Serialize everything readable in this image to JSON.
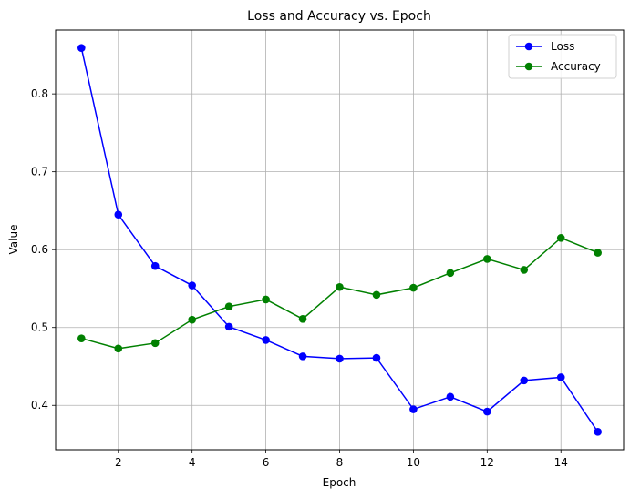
{
  "chart_data": {
    "type": "line",
    "title": "Loss and Accuracy vs. Epoch",
    "xlabel": "Epoch",
    "ylabel": "Value",
    "x": [
      1,
      2,
      3,
      4,
      5,
      6,
      7,
      8,
      9,
      10,
      11,
      12,
      13,
      14,
      15
    ],
    "xlim": [
      0.3,
      15.7
    ],
    "ylim": [
      0.343,
      0.882
    ],
    "xticks": [
      2,
      4,
      6,
      8,
      10,
      12,
      14
    ],
    "yticks": [
      0.4,
      0.5,
      0.6,
      0.7,
      0.8
    ],
    "xtick_labels": [
      "2",
      "4",
      "6",
      "8",
      "10",
      "12",
      "14"
    ],
    "ytick_labels": [
      "0.4",
      "0.5",
      "0.6",
      "0.7",
      "0.8"
    ],
    "grid": true,
    "legend_position": "top-right",
    "series": [
      {
        "name": "Loss",
        "color": "#0000ff",
        "marker": "circle",
        "values": [
          0.859,
          0.645,
          0.579,
          0.554,
          0.501,
          0.484,
          0.463,
          0.46,
          0.461,
          0.395,
          0.411,
          0.392,
          0.432,
          0.436,
          0.366
        ]
      },
      {
        "name": "Accuracy",
        "color": "#008000",
        "marker": "circle",
        "values": [
          0.486,
          0.473,
          0.48,
          0.51,
          0.527,
          0.536,
          0.511,
          0.552,
          0.542,
          0.551,
          0.57,
          0.588,
          0.574,
          0.615,
          0.596
        ]
      }
    ]
  }
}
